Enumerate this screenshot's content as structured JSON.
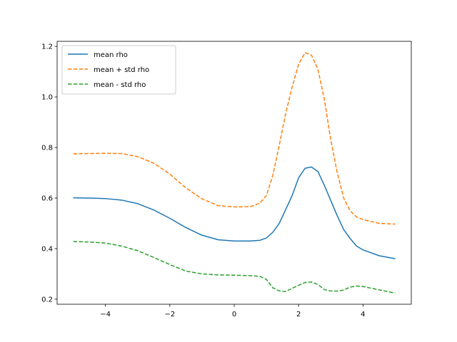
{
  "chart_data": {
    "type": "line",
    "title": "",
    "xlabel": "",
    "ylabel": "",
    "xlim": [
      -5.5,
      5.5
    ],
    "ylim": [
      0.18,
      1.22
    ],
    "xticks": [
      -4,
      -2,
      0,
      2,
      4
    ],
    "xtick_labels": [
      "−4",
      "−2",
      "0",
      "2",
      "4"
    ],
    "yticks": [
      0.2,
      0.4,
      0.6,
      0.8,
      1.0,
      1.2
    ],
    "ytick_labels": [
      "0.2",
      "0.4",
      "0.6",
      "0.8",
      "1.0",
      "1.2"
    ],
    "grid": false,
    "legend_position": "top-left",
    "x": [
      -5,
      -4.5,
      -4,
      -3.5,
      -3,
      -2.5,
      -2,
      -1.5,
      -1,
      -0.5,
      0,
      0.5,
      0.8,
      1,
      1.2,
      1.4,
      1.6,
      1.8,
      2,
      2.2,
      2.4,
      2.6,
      2.8,
      3,
      3.2,
      3.4,
      3.6,
      3.8,
      4,
      4.5,
      5
    ],
    "series": [
      {
        "name": "mean rho",
        "color": "#1f77b4",
        "style": "solid",
        "values": [
          0.601,
          0.6,
          0.598,
          0.592,
          0.578,
          0.553,
          0.52,
          0.483,
          0.453,
          0.435,
          0.43,
          0.43,
          0.433,
          0.442,
          0.465,
          0.5,
          0.555,
          0.61,
          0.68,
          0.718,
          0.723,
          0.705,
          0.65,
          0.59,
          0.53,
          0.475,
          0.44,
          0.41,
          0.395,
          0.372,
          0.36
        ]
      },
      {
        "name": "mean + std rho",
        "color": "#ff7f0e",
        "style": "dashed",
        "values": [
          0.775,
          0.776,
          0.777,
          0.776,
          0.764,
          0.738,
          0.695,
          0.64,
          0.597,
          0.57,
          0.565,
          0.566,
          0.58,
          0.61,
          0.69,
          0.81,
          0.935,
          1.04,
          1.13,
          1.175,
          1.165,
          1.11,
          0.99,
          0.83,
          0.7,
          0.6,
          0.55,
          0.525,
          0.515,
          0.5,
          0.497
        ]
      },
      {
        "name": "mean - std rho",
        "color": "#2ca02c",
        "style": "dashed",
        "values": [
          0.428,
          0.426,
          0.422,
          0.41,
          0.392,
          0.365,
          0.337,
          0.311,
          0.3,
          0.296,
          0.295,
          0.293,
          0.29,
          0.278,
          0.245,
          0.233,
          0.23,
          0.243,
          0.255,
          0.266,
          0.268,
          0.258,
          0.238,
          0.232,
          0.232,
          0.236,
          0.248,
          0.252,
          0.25,
          0.237,
          0.224
        ]
      }
    ]
  }
}
